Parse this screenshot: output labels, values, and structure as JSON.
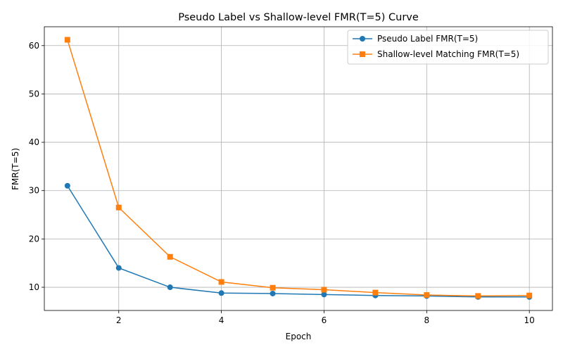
{
  "chart_data": {
    "type": "line",
    "title": "Pseudo Label vs Shallow-level FMR(T=5) Curve",
    "xlabel": "Epoch",
    "ylabel": "FMR(T=5)",
    "x": [
      1,
      2,
      3,
      4,
      5,
      6,
      7,
      8,
      9,
      10
    ],
    "xlim": [
      0.55,
      10.45
    ],
    "ylim": [
      5.2,
      63.9
    ],
    "xticks": [
      2,
      4,
      6,
      8,
      10
    ],
    "yticks": [
      10,
      20,
      30,
      40,
      50,
      60
    ],
    "grid": true,
    "legend_position": "top-right",
    "series": [
      {
        "name": "Pseudo Label FMR(T=5)",
        "color": "#1f77b4",
        "marker": "circle",
        "values": [
          31.0,
          14.0,
          10.0,
          8.8,
          8.7,
          8.5,
          8.3,
          8.2,
          8.0,
          8.0
        ]
      },
      {
        "name": "Shallow-level Matching FMR(T=5)",
        "color": "#ff7f0e",
        "marker": "square",
        "values": [
          61.2,
          26.5,
          16.3,
          11.1,
          9.9,
          9.5,
          8.9,
          8.4,
          8.2,
          8.3
        ]
      }
    ]
  }
}
